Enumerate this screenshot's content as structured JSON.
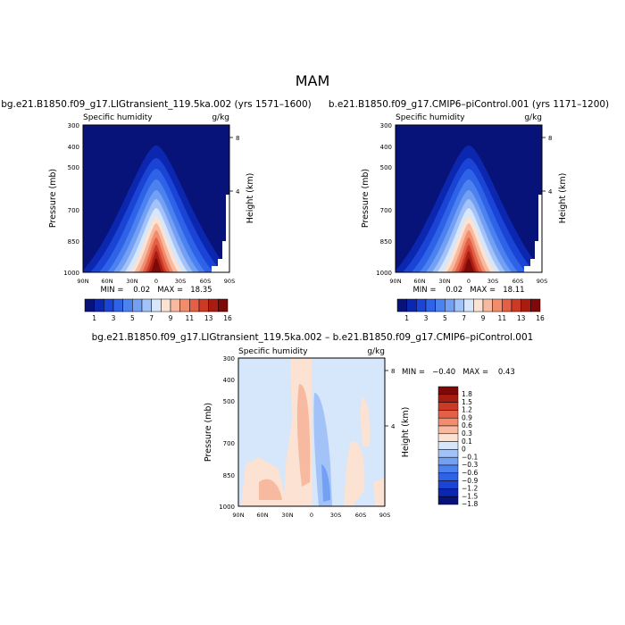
{
  "figure_title": "MAM",
  "panels": [
    {
      "title": "bg.e21.B1850.f09_g17.LIGtransient_119.5ka.002 (yrs 1571–1600)",
      "left_label": "Specific humidity",
      "right_label": "g/kg",
      "stats": "MIN =    0.02   MAX =   18.35"
    },
    {
      "title": "b.e21.B1850.f09_g17.CMIP6–piControl.001 (yrs 1171–1200)",
      "left_label": "Specific humidity",
      "right_label": "g/kg",
      "stats": "MIN =    0.02   MAX =   18.11"
    },
    {
      "title": "bg.e21.B1850.f09_g17.LIGtransient_119.5ka.002 – b.e21.B1850.f09_g17.CMIP6–piControl.001",
      "left_label": "Specific humidity",
      "right_label": "g/kg",
      "stats": "MIN =   −0.40   MAX =    0.43"
    }
  ],
  "axes": {
    "ylabel": "Pressure (mb)",
    "y2label": "Height (km)",
    "pressure_ticks": [
      "300",
      "400",
      "500",
      "700",
      "850",
      "1000"
    ],
    "height_ticks": [
      "8",
      "4"
    ],
    "lat_ticks": [
      "90N",
      "60N",
      "30N",
      "0",
      "30S",
      "60S",
      "90S"
    ]
  },
  "chart_data": [
    {
      "type": "heatmap",
      "name": "LIGtransient_119.5ka.002",
      "variable": "Specific humidity",
      "units": "g/kg",
      "x_label_ticks": [
        "90N",
        "60N",
        "30N",
        "0",
        "30S",
        "60S",
        "90S"
      ],
      "y_pressure_ticks": [
        300,
        400,
        500,
        700,
        850,
        1000
      ],
      "min": 0.02,
      "max": 18.35,
      "contour_levels": [
        1,
        2,
        3,
        4,
        5,
        6,
        7,
        8,
        9,
        10,
        11,
        12,
        13,
        14,
        16
      ],
      "colorbar_labels": [
        "1",
        "3",
        "5",
        "7",
        "9",
        "11",
        "13",
        "16"
      ]
    },
    {
      "type": "heatmap",
      "name": "CMIP6-piControl.001",
      "variable": "Specific humidity",
      "units": "g/kg",
      "x_label_ticks": [
        "90N",
        "60N",
        "30N",
        "0",
        "30S",
        "60S",
        "90S"
      ],
      "y_pressure_ticks": [
        300,
        400,
        500,
        700,
        850,
        1000
      ],
      "min": 0.02,
      "max": 18.11,
      "contour_levels": [
        1,
        2,
        3,
        4,
        5,
        6,
        7,
        8,
        9,
        10,
        11,
        12,
        13,
        14,
        16
      ],
      "colorbar_labels": [
        "1",
        "3",
        "5",
        "7",
        "9",
        "11",
        "13",
        "16"
      ]
    },
    {
      "type": "heatmap",
      "name": "difference",
      "variable": "Specific humidity",
      "units": "g/kg",
      "x_label_ticks": [
        "90N",
        "60N",
        "30N",
        "0",
        "30S",
        "60S",
        "90S"
      ],
      "y_pressure_ticks": [
        300,
        400,
        500,
        700,
        850,
        1000
      ],
      "min": -0.4,
      "max": 0.43,
      "contour_levels": [
        -1.8,
        -1.5,
        -1.2,
        -0.9,
        -0.6,
        -0.3,
        -0.1,
        0,
        0.1,
        0.3,
        0.6,
        0.9,
        1.2,
        1.5,
        1.8
      ],
      "colorbar_labels": [
        "1.8",
        "1.5",
        "1.2",
        "0.9",
        "0.6",
        "0.3",
        "0.1",
        "0",
        "−0.1",
        "−0.3",
        "−0.6",
        "−0.9",
        "−1.2",
        "−1.5",
        "−1.8"
      ]
    }
  ],
  "colors": {
    "abs_palette": [
      "#08137a",
      "#0b27b0",
      "#1a44d6",
      "#2e63e8",
      "#4c82f0",
      "#74a0f4",
      "#a3c2f7",
      "#d6e6fb",
      "#fbe2d2",
      "#f7b9a0",
      "#f18d6d",
      "#e35f45",
      "#cc3a26",
      "#a91c12",
      "#7d0a08"
    ],
    "diff_palette": [
      "#7d0a08",
      "#a91c12",
      "#cc3a26",
      "#e35f45",
      "#f18d6d",
      "#f7b9a0",
      "#fbe2d2",
      "#d6e6fb",
      "#a3c2f7",
      "#74a0f4",
      "#4c82f0",
      "#2e63e8",
      "#1a44d6",
      "#0b27b0",
      "#08137a"
    ]
  }
}
